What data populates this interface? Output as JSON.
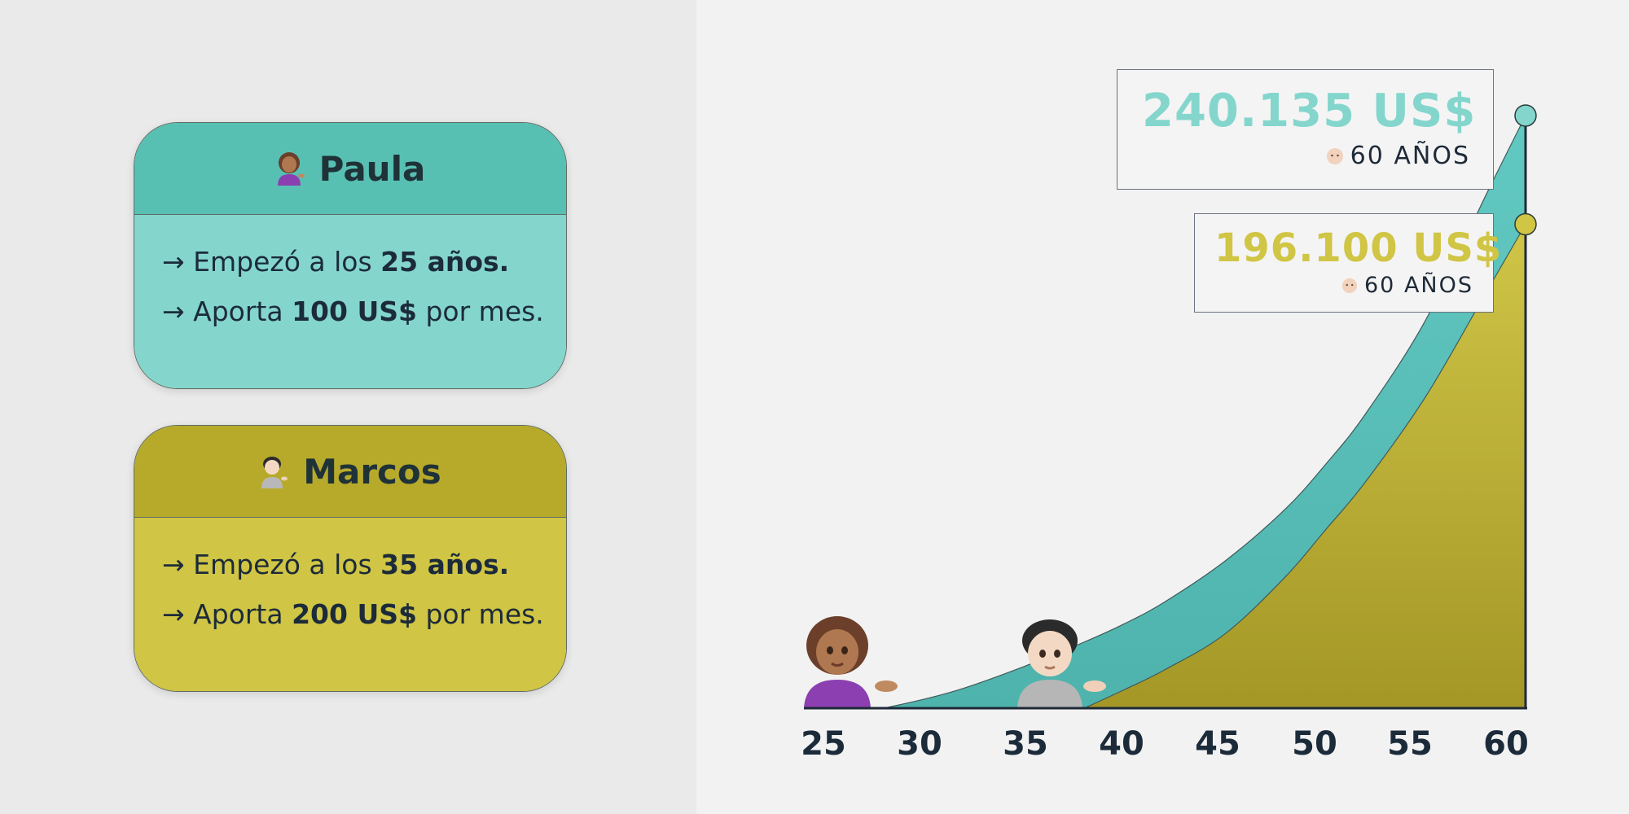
{
  "cards": [
    {
      "name": "Paula",
      "line1_pre": "→ Empezó a los ",
      "line1_bold": "25 años.",
      "line2_pre": "→ Aporta ",
      "line2_bold": "100 US$",
      "line2_post": " por mes."
    },
    {
      "name": "Marcos",
      "line1_pre": "→ Empezó a los ",
      "line1_bold": "35 años.",
      "line2_pre": "→ Aporta ",
      "line2_bold": "200 US$",
      "line2_post": " por mes."
    }
  ],
  "colors": {
    "paula_fill": "#57bdb7",
    "marcos_fill": "#bdb334",
    "paula_text": "#84d6cd",
    "marcos_text": "#d0c544"
  },
  "callouts": [
    {
      "value": "240.135 US$",
      "age_label": "60 AÑOS"
    },
    {
      "value": "196.100 US$",
      "age_label": "60 AÑOS"
    }
  ],
  "chart_data": {
    "type": "area",
    "title": "",
    "xlabel": "",
    "ylabel": "",
    "x_ticks": [
      25,
      30,
      35,
      40,
      45,
      50,
      55,
      60
    ],
    "xlim": [
      25,
      60
    ],
    "ylim": [
      0,
      240135
    ],
    "series": [
      {
        "name": "Paula",
        "start_age": 25,
        "monthly_contribution": 100,
        "x": [
          28,
          30,
          32,
          35,
          38,
          40,
          42,
          45,
          48,
          50,
          52,
          55,
          58,
          60
        ],
        "y": [
          0,
          3600,
          8100,
          16900,
          26800,
          34200,
          43000,
          59500,
          80500,
          98500,
          119000,
          157000,
          207500,
          240135
        ]
      },
      {
        "name": "Marcos",
        "start_age": 35,
        "monthly_contribution": 200,
        "x": [
          38,
          40,
          42,
          45,
          48,
          50,
          52,
          55,
          58,
          60
        ],
        "y": [
          0,
          7500,
          15500,
          30000,
          53000,
          72000,
          91500,
          126000,
          168000,
          196100
        ]
      }
    ],
    "annotations": [
      {
        "x": 60,
        "y": 240135,
        "label": "240.135 US$"
      },
      {
        "x": 60,
        "y": 196100,
        "label": "196.100 US$"
      }
    ]
  }
}
